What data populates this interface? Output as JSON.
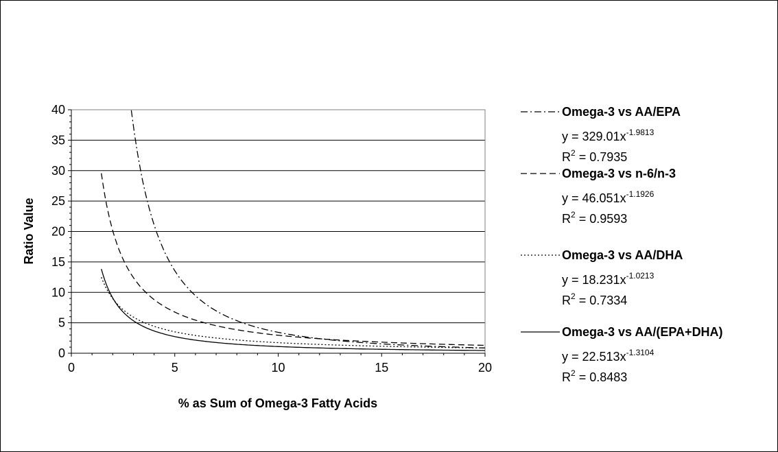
{
  "chart_data": {
    "type": "line",
    "title": "",
    "xlabel": "% as Sum of Omega-3 Fatty Acids",
    "ylabel": "Ratio Value",
    "xlim": [
      0,
      20
    ],
    "ylim": [
      0,
      40
    ],
    "x_ticks": [
      "0",
      "5",
      "10",
      "15",
      "20"
    ],
    "y_ticks": [
      "0",
      "5",
      "10",
      "15",
      "20",
      "25",
      "30",
      "35",
      "40"
    ],
    "grid": "horizontal",
    "legend_position": "right",
    "series": [
      {
        "name": "Omega-3 vs AA/EPA",
        "dash": "dash-dot",
        "equation": {
          "prefix": "y = 329.01x",
          "exponent": "-1.9813"
        },
        "r2": {
          "prefix": "R",
          "exponent": "2",
          "suffix": " = 0.7935"
        },
        "coef": 329.01,
        "power": -1.9813,
        "x_start": 2.9,
        "values": [
          [
            3,
            37.1
          ],
          [
            4,
            21.0
          ],
          [
            5,
            13.5
          ],
          [
            6,
            9.4
          ],
          [
            8,
            5.3
          ],
          [
            10,
            3.4
          ],
          [
            12,
            2.4
          ],
          [
            15,
            1.5
          ],
          [
            20,
            0.9
          ]
        ]
      },
      {
        "name": "Omega-3 vs n-6/n-3",
        "dash": "dash",
        "equation": {
          "prefix": "y = 46.051x",
          "exponent": "-1.1926"
        },
        "r2": {
          "prefix": "R",
          "exponent": "2",
          "suffix": " = 0.9593"
        },
        "coef": 46.051,
        "power": -1.1926,
        "x_start": 1.45,
        "values": [
          [
            1.5,
            28.5
          ],
          [
            2,
            19.9
          ],
          [
            3,
            12.1
          ],
          [
            5,
            6.5
          ],
          [
            8,
            3.7
          ],
          [
            10,
            2.9
          ],
          [
            15,
            1.8
          ],
          [
            20,
            1.3
          ]
        ]
      },
      {
        "name": "Omega-3 vs AA/DHA",
        "dash": "dot",
        "equation": {
          "prefix": "y = 18.231x",
          "exponent": "-1.0213"
        },
        "r2": {
          "prefix": "R",
          "exponent": "2",
          "suffix": " = 0.7334"
        },
        "coef": 18.231,
        "power": -1.0213,
        "x_start": 1.45,
        "values": [
          [
            1.5,
            12.0
          ],
          [
            2,
            9.0
          ],
          [
            3,
            6.0
          ],
          [
            5,
            3.6
          ],
          [
            8,
            2.2
          ],
          [
            10,
            1.8
          ],
          [
            15,
            1.2
          ],
          [
            20,
            0.9
          ]
        ]
      },
      {
        "name": "Omega-3 vs AA/(EPA+DHA)",
        "dash": "solid",
        "equation": {
          "prefix": "y = 22.513x",
          "exponent": "-1.3104"
        },
        "r2": {
          "prefix": "R",
          "exponent": "2",
          "suffix": " = 0.8483"
        },
        "coef": 22.513,
        "power": -1.3104,
        "x_start": 1.45,
        "values": [
          [
            1.5,
            13.2
          ],
          [
            2,
            9.1
          ],
          [
            3,
            5.3
          ],
          [
            5,
            2.7
          ],
          [
            8,
            1.5
          ],
          [
            10,
            1.1
          ],
          [
            15,
            0.7
          ],
          [
            20,
            0.4
          ]
        ]
      }
    ]
  }
}
